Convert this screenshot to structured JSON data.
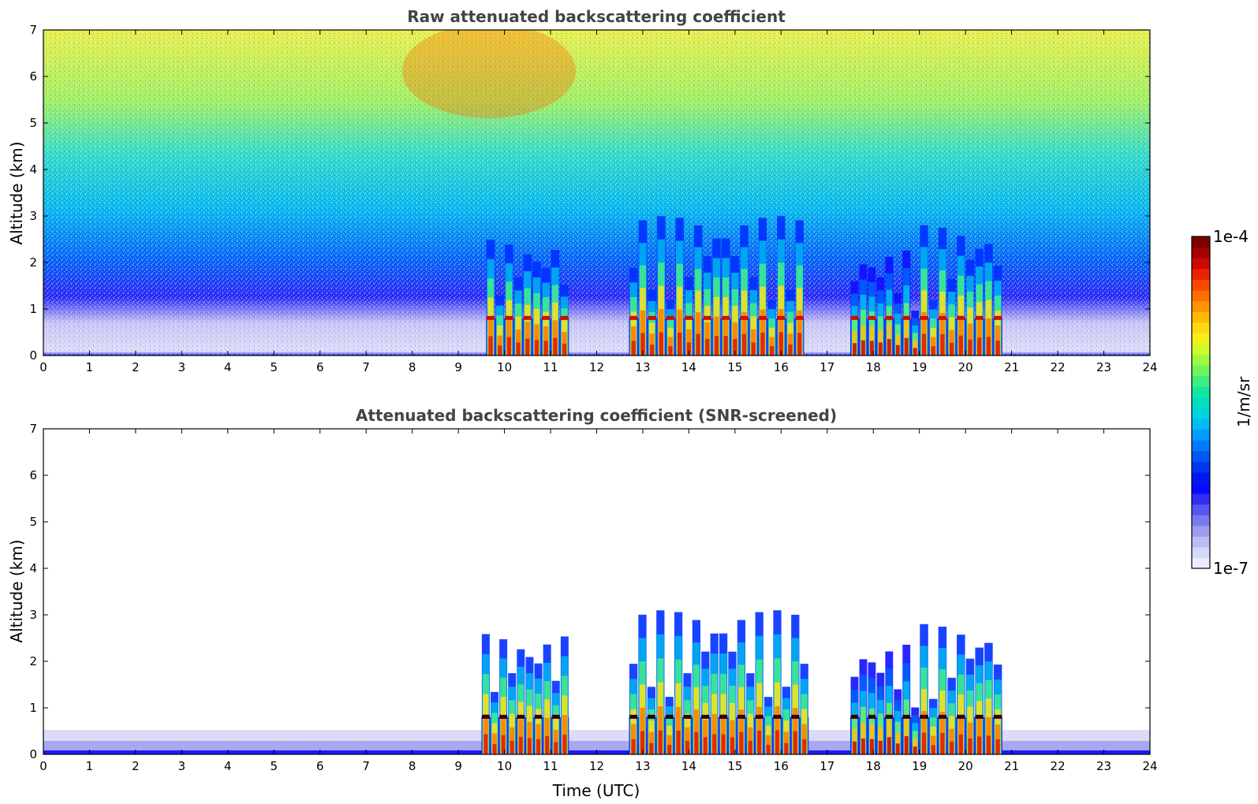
{
  "chart_data": [
    {
      "type": "heatmap",
      "title": "Raw attenuated backscattering coefficient",
      "xlabel": "",
      "ylabel": "Altitude (km)",
      "xlim": [
        0,
        24
      ],
      "ylim": [
        0,
        7
      ],
      "xticks": [
        "0",
        "1",
        "2",
        "3",
        "4",
        "5",
        "6",
        "7",
        "8",
        "9",
        "10",
        "11",
        "12",
        "13",
        "14",
        "15",
        "16",
        "17",
        "18",
        "19",
        "20",
        "21",
        "22",
        "23",
        "24"
      ],
      "yticks": [
        "0",
        "1",
        "2",
        "3",
        "4",
        "5",
        "6",
        "7"
      ],
      "background": "noisy; log-scale values increase with altitude from ~1e-7 near surface to ~1e-5 above 5 km",
      "features": [
        {
          "t_start": 9.6,
          "t_end": 11.4,
          "alt_top": 2.5,
          "level": "high"
        },
        {
          "t_start": 12.7,
          "t_end": 16.5,
          "alt_top": 3.0,
          "level": "high"
        },
        {
          "t_start": 17.5,
          "t_end": 19.0,
          "alt_top": 2.3,
          "level": "medium"
        },
        {
          "t_start": 19.0,
          "t_end": 20.8,
          "alt_top": 2.8,
          "level": "high"
        }
      ]
    },
    {
      "type": "heatmap",
      "title": "Attenuated backscattering coefficient (SNR-screened)",
      "xlabel": "Time (UTC)",
      "ylabel": "Altitude (km)",
      "xlim": [
        0,
        24
      ],
      "ylim": [
        0,
        7
      ],
      "xticks": [
        "0",
        "1",
        "2",
        "3",
        "4",
        "5",
        "6",
        "7",
        "8",
        "9",
        "10",
        "11",
        "12",
        "13",
        "14",
        "15",
        "16",
        "17",
        "18",
        "19",
        "20",
        "21",
        "22",
        "23",
        "24"
      ],
      "yticks": [
        "0",
        "1",
        "2",
        "3",
        "4",
        "5",
        "6",
        "7"
      ],
      "background": "white above ~0.5 km boundary layer except cloud features",
      "features": [
        {
          "t_start": 9.5,
          "t_end": 11.4,
          "alt_top": 2.6,
          "level": "high"
        },
        {
          "t_start": 12.7,
          "t_end": 16.6,
          "alt_top": 3.1,
          "level": "high"
        },
        {
          "t_start": 17.5,
          "t_end": 19.0,
          "alt_top": 2.4,
          "level": "medium"
        },
        {
          "t_start": 19.0,
          "t_end": 20.8,
          "alt_top": 2.8,
          "level": "high"
        }
      ]
    }
  ],
  "colorbar": {
    "label": "1/m/sr",
    "max_label": "1e-4",
    "min_label": "1e-7",
    "colors": [
      "#ececfc",
      "#d6d6f8",
      "#bcbcf4",
      "#9c9cf0",
      "#7a7aee",
      "#5656f0",
      "#2e2ef4",
      "#0a0aff",
      "#0018f0",
      "#0036f4",
      "#0058f8",
      "#007afc",
      "#009cff",
      "#00bcf4",
      "#00d2e0",
      "#00e0c0",
      "#10e8a0",
      "#40ee80",
      "#70f460",
      "#a0f840",
      "#d0fa28",
      "#f4f018",
      "#ffd810",
      "#ffb808",
      "#ff9400",
      "#ff6e00",
      "#f84800",
      "#e82400",
      "#cc0800",
      "#a80000",
      "#7c0000"
    ]
  }
}
